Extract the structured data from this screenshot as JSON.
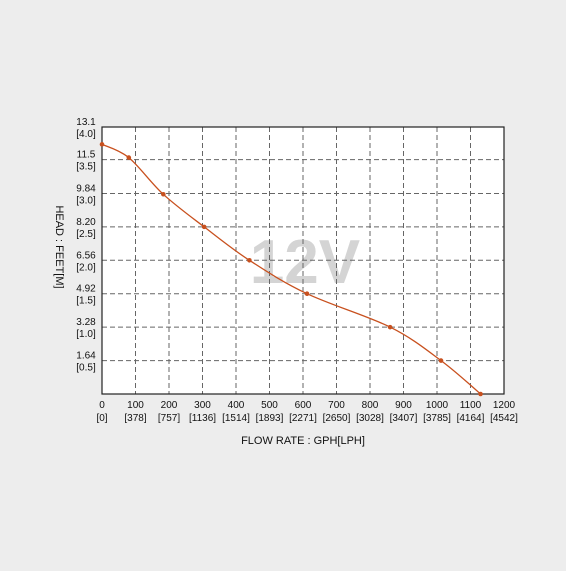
{
  "chart_data": {
    "type": "line",
    "title": "",
    "watermark": "12V",
    "xlabel": "FLOW RATE : GPH[LPH]",
    "ylabel": "HEAD : FEET[M]",
    "xlim": [
      0,
      1200
    ],
    "ylim": [
      0,
      13.1
    ],
    "grid": true,
    "legend": "none",
    "x_ticks": [
      {
        "value": 0,
        "label": "0",
        "sublabel": "[0]"
      },
      {
        "value": 100,
        "label": "100",
        "sublabel": "[378]"
      },
      {
        "value": 200,
        "label": "200",
        "sublabel": "[757]"
      },
      {
        "value": 300,
        "label": "300",
        "sublabel": "[1136]"
      },
      {
        "value": 400,
        "label": "400",
        "sublabel": "[1514]"
      },
      {
        "value": 500,
        "label": "500",
        "sublabel": "[1893]"
      },
      {
        "value": 600,
        "label": "600",
        "sublabel": "[2271]"
      },
      {
        "value": 700,
        "label": "700",
        "sublabel": "[2650]"
      },
      {
        "value": 800,
        "label": "800",
        "sublabel": "[3028]"
      },
      {
        "value": 900,
        "label": "900",
        "sublabel": "[3407]"
      },
      {
        "value": 1000,
        "label": "1000",
        "sublabel": "[3785]"
      },
      {
        "value": 1100,
        "label": "1100",
        "sublabel": "[4164]"
      },
      {
        "value": 1200,
        "label": "1200",
        "sublabel": "[4542]"
      }
    ],
    "y_ticks": [
      {
        "value": 1.64,
        "label": "1.64",
        "sublabel": "[0.5]"
      },
      {
        "value": 3.28,
        "label": "3.28",
        "sublabel": "[1.0]"
      },
      {
        "value": 4.92,
        "label": "4.92",
        "sublabel": "[1.5]"
      },
      {
        "value": 6.56,
        "label": "6.56",
        "sublabel": "[2.0]"
      },
      {
        "value": 8.2,
        "label": "8.20",
        "sublabel": "[2.5]"
      },
      {
        "value": 9.84,
        "label": "9.84",
        "sublabel": "[3.0]"
      },
      {
        "value": 11.5,
        "label": "11.5",
        "sublabel": "[3.5]"
      },
      {
        "value": 13.1,
        "label": "13.1",
        "sublabel": "[4.0]"
      }
    ],
    "series": [
      {
        "color": "#c8501e",
        "points": [
          {
            "x": 0,
            "y": 12.25
          },
          {
            "x": 80,
            "y": 11.6
          },
          {
            "x": 183,
            "y": 9.8
          },
          {
            "x": 305,
            "y": 8.2
          },
          {
            "x": 440,
            "y": 6.56
          },
          {
            "x": 612,
            "y": 4.92
          },
          {
            "x": 860,
            "y": 3.28
          },
          {
            "x": 1012,
            "y": 1.64
          },
          {
            "x": 1130,
            "y": 0
          }
        ]
      }
    ]
  }
}
